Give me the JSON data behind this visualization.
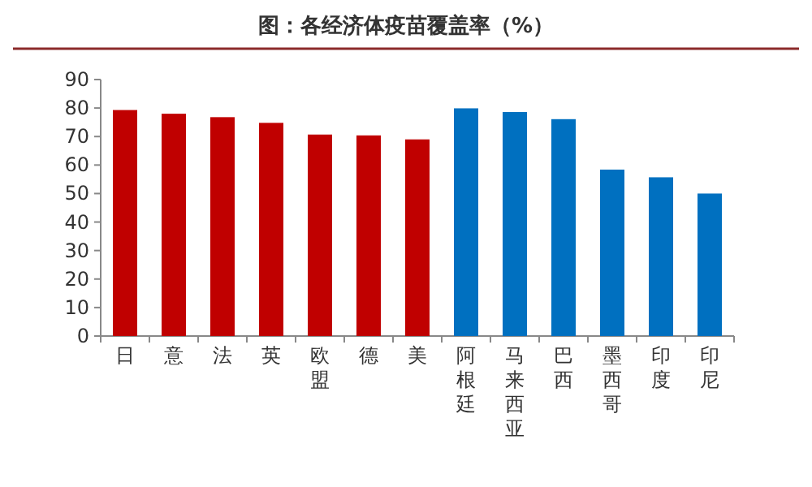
{
  "chart_data": {
    "type": "bar",
    "title": "图：各经济体疫苗覆盖率（%）",
    "categories": [
      "日",
      "意",
      "法",
      "英",
      "欧盟",
      "德",
      "美",
      "阿根廷",
      "马来西亚",
      "巴西",
      "墨西哥",
      "印度",
      "印尼"
    ],
    "values": [
      79.3,
      78,
      76.8,
      74.8,
      70.7,
      70.4,
      69,
      79.9,
      78.6,
      76.1,
      58.4,
      55.7,
      50
    ],
    "colors": [
      "#c00000",
      "#c00000",
      "#c00000",
      "#c00000",
      "#c00000",
      "#c00000",
      "#c00000",
      "#0070c0",
      "#0070c0",
      "#0070c0",
      "#0070c0",
      "#0070c0",
      "#0070c0"
    ],
    "ylim": [
      0,
      90
    ],
    "yticks": [
      0,
      10,
      20,
      30,
      40,
      50,
      60,
      70,
      80,
      90
    ]
  }
}
